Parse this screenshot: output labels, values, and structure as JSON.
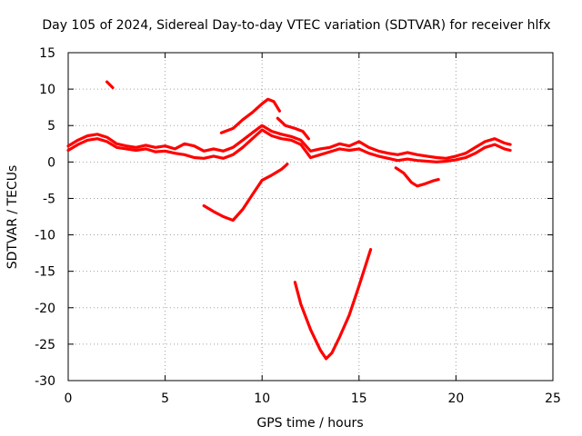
{
  "chart_data": {
    "type": "line",
    "title": "Day 105 of 2024, Sidereal Day-to-day VTEC variation (SDTVAR) for receiver hlfx",
    "xlabel": "GPS time / hours",
    "ylabel": "SDTVAR / TECUs",
    "xlim": [
      0,
      25
    ],
    "ylim": [
      -30,
      15
    ],
    "xticks": [
      0,
      5,
      10,
      15,
      20,
      25
    ],
    "yticks": [
      15,
      10,
      5,
      0,
      -5,
      -10,
      -15,
      -20,
      -25,
      -30
    ],
    "grid": true,
    "color": "#ff0000",
    "series": [
      {
        "name": "main-trace-upper",
        "x": [
          0,
          0.5,
          1,
          1.5,
          2,
          2.5,
          3,
          3.5,
          4,
          4.5,
          5,
          5.5,
          6,
          6.5,
          7,
          7.5,
          8,
          8.5,
          9,
          9.5,
          10,
          10.5,
          11,
          11.5,
          12,
          12.5,
          13,
          13.5,
          14,
          14.5,
          15,
          15.5,
          16,
          16.5,
          17,
          17.5,
          18,
          18.5,
          19,
          19.5,
          20,
          20.5,
          21,
          21.5,
          22,
          22.5,
          22.8
        ],
        "y": [
          2.2,
          3.0,
          3.6,
          3.8,
          3.4,
          2.5,
          2.2,
          2.0,
          2.3,
          2.0,
          2.2,
          1.8,
          2.5,
          2.2,
          1.5,
          1.8,
          1.5,
          2.0,
          3.0,
          4.0,
          5.0,
          4.2,
          3.8,
          3.5,
          3.0,
          1.5,
          1.8,
          2.0,
          2.5,
          2.2,
          2.8,
          2.0,
          1.5,
          1.2,
          1.0,
          1.3,
          1.0,
          0.8,
          0.6,
          0.5,
          0.8,
          1.2,
          2.0,
          2.8,
          3.2,
          2.6,
          2.4
        ]
      },
      {
        "name": "main-trace-lower",
        "x": [
          0,
          0.5,
          1,
          1.5,
          2,
          2.5,
          3,
          3.5,
          4,
          4.5,
          5,
          5.5,
          6,
          6.5,
          7,
          7.5,
          8,
          8.5,
          9,
          9.5,
          10,
          10.5,
          11,
          11.5,
          12,
          12.5,
          13,
          13.5,
          14,
          14.5,
          15,
          15.5,
          16,
          16.5,
          17,
          17.5,
          18,
          18.5,
          19,
          19.5,
          20,
          20.5,
          21,
          21.5,
          22,
          22.5,
          22.8
        ],
        "y": [
          1.6,
          2.4,
          3.0,
          3.2,
          2.8,
          2.0,
          1.8,
          1.6,
          1.8,
          1.4,
          1.5,
          1.2,
          1.0,
          0.6,
          0.5,
          0.8,
          0.5,
          1.0,
          2.0,
          3.2,
          4.4,
          3.6,
          3.2,
          3.0,
          2.4,
          0.6,
          1.0,
          1.4,
          1.8,
          1.6,
          1.8,
          1.2,
          0.8,
          0.5,
          0.2,
          0.4,
          0.2,
          0.1,
          0.0,
          0.1,
          0.3,
          0.6,
          1.2,
          2.0,
          2.4,
          1.8,
          1.6
        ]
      },
      {
        "name": "segment-short-top",
        "x": [
          2.0,
          2.3
        ],
        "y": [
          11.0,
          10.2
        ]
      },
      {
        "name": "segment-hump",
        "x": [
          7.9,
          8.5,
          9.0,
          9.5,
          10.0,
          10.3,
          10.6,
          10.9
        ],
        "y": [
          4.0,
          4.6,
          5.8,
          6.8,
          8.0,
          8.6,
          8.3,
          7.0
        ]
      },
      {
        "name": "segment-shoulder",
        "x": [
          10.8,
          11.2,
          11.7,
          12.1,
          12.4
        ],
        "y": [
          6.0,
          5.0,
          4.6,
          4.2,
          3.2
        ]
      },
      {
        "name": "segment-dip-mid",
        "x": [
          7.0,
          7.5,
          8.0,
          8.5,
          9.0,
          9.5,
          10.0,
          10.5,
          11.0,
          11.3
        ],
        "y": [
          -6.0,
          -6.8,
          -7.5,
          -8.0,
          -6.5,
          -4.5,
          -2.5,
          -1.8,
          -1.0,
          -0.3
        ]
      },
      {
        "name": "segment-deep-v",
        "x": [
          11.7,
          12.0,
          12.5,
          13.0,
          13.3,
          13.6,
          14.0,
          14.5,
          15.0,
          15.3,
          15.6
        ],
        "y": [
          -16.5,
          -19.5,
          -23.0,
          -25.8,
          -27.0,
          -26.2,
          -24.0,
          -21.0,
          -17.0,
          -14.5,
          -12.0
        ]
      },
      {
        "name": "segment-right-dip",
        "x": [
          16.9,
          17.3,
          17.7,
          18.0,
          18.4,
          18.8,
          19.1
        ],
        "y": [
          -0.8,
          -1.5,
          -2.8,
          -3.3,
          -3.0,
          -2.6,
          -2.4
        ]
      }
    ]
  }
}
